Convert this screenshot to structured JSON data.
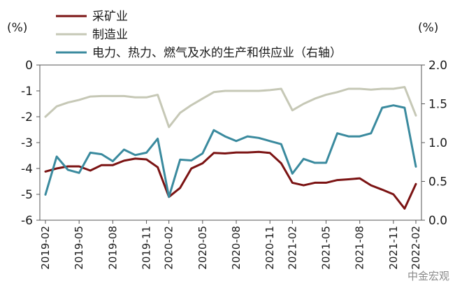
{
  "chart_data": {
    "type": "line",
    "title": "",
    "left_axis_unit": "(%)",
    "right_axis_unit": "(%)",
    "ylim_left": [
      -6,
      0
    ],
    "ylim_right": [
      0.0,
      2.0
    ],
    "left_ticks": [
      "0",
      "-1",
      "-2",
      "-3",
      "-4",
      "-5",
      "-6"
    ],
    "right_ticks": [
      "2.0",
      "1.5",
      "1.0",
      "0.5",
      "0.0"
    ],
    "x_tick_labels": [
      "2019-02",
      "2019-05",
      "2019-08",
      "2019-11",
      "2020-02",
      "2020-05",
      "2020-08",
      "2020-11",
      "2021-02",
      "2021-05",
      "2021-08",
      "2021-11",
      "2022-02"
    ],
    "x": [
      "2019-02",
      "2019-03",
      "2019-04",
      "2019-05",
      "2019-06",
      "2019-07",
      "2019-08",
      "2019-09",
      "2019-10",
      "2019-11",
      "2019-12",
      "2020-02",
      "2020-03",
      "2020-04",
      "2020-05",
      "2020-06",
      "2020-07",
      "2020-08",
      "2020-09",
      "2020-10",
      "2020-11",
      "2020-12",
      "2021-02",
      "2021-03",
      "2021-04",
      "2021-05",
      "2021-06",
      "2021-07",
      "2021-08",
      "2021-09",
      "2021-10",
      "2021-11",
      "2021-12",
      "2022-02"
    ],
    "grid": false,
    "legend_position": "top",
    "series": [
      {
        "name": "采矿业",
        "axis": "left",
        "color": "#7b1313",
        "values": [
          -4.12,
          -4.0,
          -3.92,
          -3.92,
          -4.08,
          -3.87,
          -3.87,
          -3.7,
          -3.62,
          -3.65,
          -3.95,
          -5.1,
          -4.75,
          -4.0,
          -3.8,
          -3.4,
          -3.42,
          -3.38,
          -3.38,
          -3.36,
          -3.4,
          -3.8,
          -4.55,
          -4.65,
          -4.55,
          -4.55,
          -4.45,
          -4.42,
          -4.38,
          -4.65,
          -4.82,
          -5.0,
          -5.55,
          -4.6
        ]
      },
      {
        "name": "制造业",
        "axis": "left",
        "color": "#c6c8b6",
        "values": [
          -2.0,
          -1.6,
          -1.45,
          -1.35,
          -1.22,
          -1.2,
          -1.2,
          -1.2,
          -1.25,
          -1.25,
          -1.15,
          -2.4,
          -1.85,
          -1.55,
          -1.3,
          -1.05,
          -1.0,
          -1.0,
          -1.0,
          -1.0,
          -0.97,
          -0.92,
          -1.75,
          -1.5,
          -1.3,
          -1.15,
          -1.05,
          -0.92,
          -0.92,
          -0.95,
          -0.92,
          -0.92,
          -0.85,
          -1.95
        ]
      },
      {
        "name": "电力、热力、燃气及水的生产和供应业（右轴）",
        "axis": "right",
        "color": "#3a8a9e",
        "values": [
          0.33,
          0.82,
          0.65,
          0.61,
          0.87,
          0.85,
          0.76,
          0.91,
          0.84,
          0.87,
          1.05,
          0.3,
          0.78,
          0.77,
          0.86,
          1.16,
          1.08,
          1.02,
          1.08,
          1.06,
          1.02,
          0.98,
          0.6,
          0.79,
          0.74,
          0.74,
          1.12,
          1.08,
          1.08,
          1.12,
          1.45,
          1.48,
          1.45,
          0.69
        ]
      }
    ]
  },
  "watermark": "中金宏观"
}
